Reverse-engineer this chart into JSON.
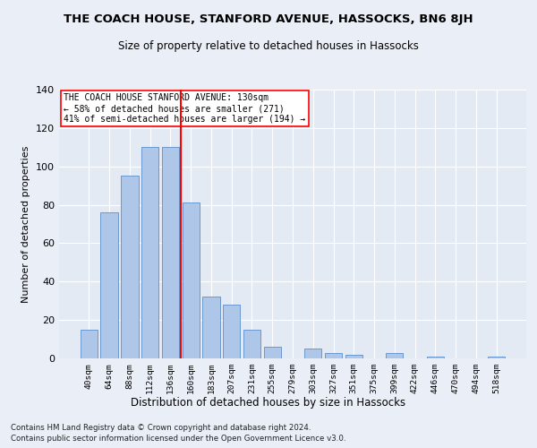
{
  "title": "THE COACH HOUSE, STANFORD AVENUE, HASSOCKS, BN6 8JH",
  "subtitle": "Size of property relative to detached houses in Hassocks",
  "xlabel": "Distribution of detached houses by size in Hassocks",
  "ylabel": "Number of detached properties",
  "bar_labels": [
    "40sqm",
    "64sqm",
    "88sqm",
    "112sqm",
    "136sqm",
    "160sqm",
    "183sqm",
    "207sqm",
    "231sqm",
    "255sqm",
    "279sqm",
    "303sqm",
    "327sqm",
    "351sqm",
    "375sqm",
    "399sqm",
    "422sqm",
    "446sqm",
    "470sqm",
    "494sqm",
    "518sqm"
  ],
  "bar_values": [
    15,
    76,
    95,
    110,
    110,
    81,
    32,
    28,
    15,
    6,
    0,
    5,
    3,
    2,
    0,
    3,
    0,
    1,
    0,
    0,
    1
  ],
  "bar_color": "#aec6e8",
  "bar_edge_color": "#5b8fc9",
  "vline_x_index": 4,
  "vline_color": "red",
  "annotation_title": "THE COACH HOUSE STANFORD AVENUE: 130sqm",
  "annotation_line1": "← 58% of detached houses are smaller (271)",
  "annotation_line2": "41% of semi-detached houses are larger (194) →",
  "ylim": [
    0,
    140
  ],
  "yticks": [
    0,
    20,
    40,
    60,
    80,
    100,
    120,
    140
  ],
  "footer1": "Contains HM Land Registry data © Crown copyright and database right 2024.",
  "footer2": "Contains public sector information licensed under the Open Government Licence v3.0.",
  "bg_color": "#eaeff7",
  "plot_bg_color": "#e4eaf4"
}
